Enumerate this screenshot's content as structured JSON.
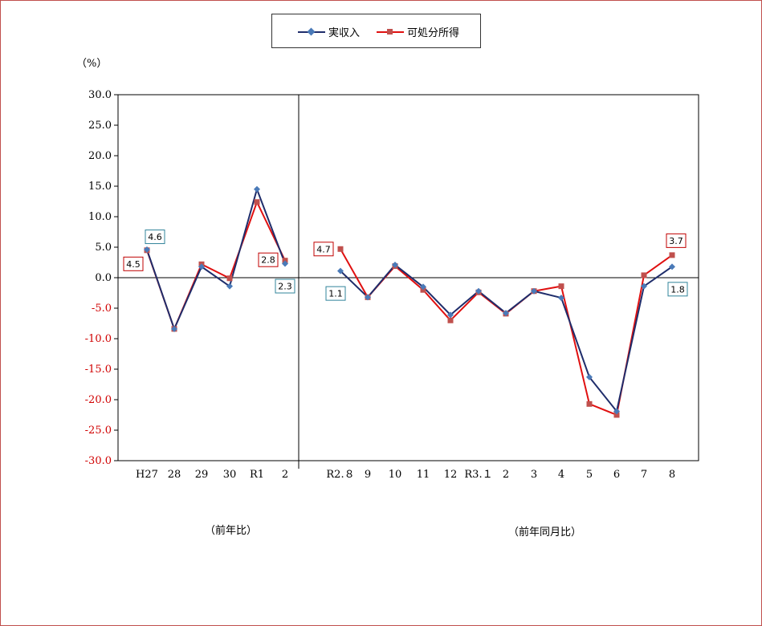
{
  "chart_data": {
    "type": "line",
    "unit_label": "（%）",
    "ylim": [
      -30,
      30
    ],
    "yticks": [
      30,
      25,
      20,
      15,
      10,
      5,
      0,
      -5,
      -10,
      -15,
      -20,
      -25,
      -30
    ],
    "ytick_labels": [
      "30.0",
      "25.0",
      "20.0",
      "15.0",
      "10.0",
      "5.0",
      "0.0",
      "-5.0",
      "-10.0",
      "-15.0",
      "-20.0",
      "-25.0",
      "-30.0"
    ],
    "negative_tick_color": "#d00000",
    "positive_tick_color": "#000000",
    "panels": [
      {
        "period_label": "（前年比）",
        "categories": [
          "H27",
          "28",
          "29",
          "30",
          "R1",
          "2"
        ]
      },
      {
        "period_label": "（前年同月比）",
        "categories": [
          "R2.８",
          "9",
          "10",
          "11",
          "12",
          "R3.１",
          "2",
          "3",
          "4",
          "5",
          "6",
          "7",
          "8"
        ]
      }
    ],
    "series": [
      {
        "name": "実収入",
        "color": "#1f2d6b",
        "marker_color": "#4a7ab8",
        "marker": "diamond",
        "panel_values": [
          [
            4.6,
            -8.4,
            1.8,
            -1.4,
            14.5,
            2.3
          ],
          [
            1.1,
            -3.2,
            2.1,
            -1.5,
            -6.1,
            -2.2,
            -5.8,
            -2.2,
            -3.3,
            -16.3,
            -21.9,
            -1.4,
            1.8
          ]
        ]
      },
      {
        "name": "可処分所得",
        "color": "#e01010",
        "marker_color": "#c0504d",
        "marker": "square",
        "panel_values": [
          [
            4.5,
            -8.4,
            2.2,
            -0.1,
            12.4,
            2.8
          ],
          [
            4.7,
            -3.2,
            1.9,
            -2.0,
            -7.0,
            -2.4,
            -5.9,
            -2.2,
            -1.4,
            -20.7,
            -22.5,
            0.4,
            3.7
          ]
        ]
      }
    ],
    "data_labels": [
      {
        "text": "4.5",
        "series": 1,
        "panel": 0,
        "index": 0,
        "border": "#c00000"
      },
      {
        "text": "4.6",
        "series": 0,
        "panel": 0,
        "index": 0,
        "border": "#31849b"
      },
      {
        "text": "2.8",
        "series": 1,
        "panel": 0,
        "index": 5,
        "border": "#c00000"
      },
      {
        "text": "2.3",
        "series": 0,
        "panel": 0,
        "index": 5,
        "border": "#31849b"
      },
      {
        "text": "4.7",
        "series": 1,
        "panel": 1,
        "index": 0,
        "border": "#c00000"
      },
      {
        "text": "1.1",
        "series": 0,
        "panel": 1,
        "index": 0,
        "border": "#31849b"
      },
      {
        "text": "3.7",
        "series": 1,
        "panel": 1,
        "index": 12,
        "border": "#c00000"
      },
      {
        "text": "1.8",
        "series": 0,
        "panel": 1,
        "index": 12,
        "border": "#31849b"
      }
    ]
  }
}
